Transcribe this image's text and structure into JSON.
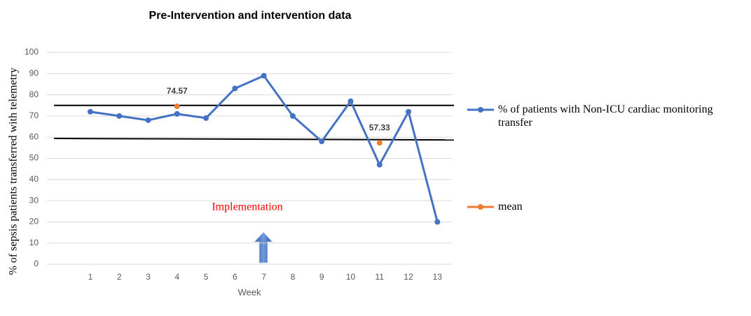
{
  "chart_data": {
    "type": "line",
    "title": "Pre-Intervention and intervention data",
    "x_label": "Week",
    "y_label": "% of sepsis patients transferred with telemetry",
    "categories": [
      null,
      "1",
      "2",
      "3",
      "4",
      "5",
      "6",
      "7",
      "8",
      "9",
      "10",
      "11",
      "12",
      "13"
    ],
    "series": [
      {
        "name": "% of patients with Non-ICU cardiac monitoring transfer",
        "color": "#4472c4",
        "values": [
          null,
          72,
          70,
          68,
          71,
          69,
          83,
          89,
          70,
          58,
          77,
          47,
          72,
          20
        ]
      },
      {
        "name": "mean",
        "color": "#ed7d31",
        "values": [
          null,
          null,
          null,
          null,
          74.57,
          null,
          null,
          null,
          null,
          null,
          null,
          57.33,
          null,
          null
        ]
      }
    ],
    "lines": [
      {
        "color": "#000000",
        "y": [
          75,
          75
        ]
      },
      {
        "color": "#000000",
        "y": [
          59.4,
          58.7
        ]
      }
    ],
    "annotation": {
      "text": "Implementation",
      "color": "#ff0000"
    },
    "ylim": [
      0,
      100
    ],
    "yticks": [
      0,
      10,
      20,
      30,
      40,
      50,
      60,
      70,
      80,
      90,
      100
    ],
    "grid": true
  }
}
